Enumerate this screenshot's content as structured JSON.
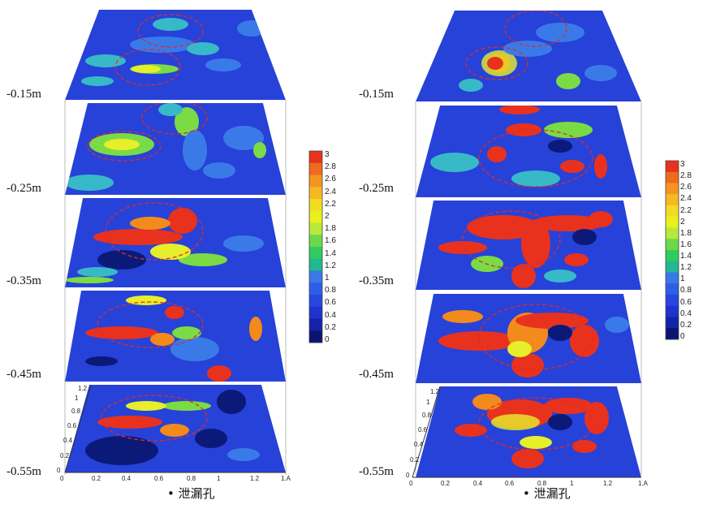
{
  "panels": [
    {
      "depth_labels": [
        "-0.15m",
        "-0.25m",
        "-0.35m",
        "-0.45m",
        "-0.55m"
      ],
      "x_ticks": [
        "0",
        "0.2",
        "0.4",
        "0.6",
        "0.8",
        "1",
        "1.2",
        "1.A"
      ],
      "y_ticks": [
        "0",
        "0.2",
        "0.4",
        "0.6",
        "0.8",
        "1",
        "1.2"
      ],
      "legend_text": "泄漏孔"
    },
    {
      "depth_labels": [
        "-0.15m",
        "-0.25m",
        "-0.35m",
        "-0.45m",
        "-0.55m"
      ],
      "x_ticks": [
        "0",
        "0.2",
        "0.4",
        "0.6",
        "0.8",
        "1",
        "1.2",
        "1.A"
      ],
      "y_ticks": [
        "0",
        "0.2",
        "0.4",
        "0.6",
        "0.8",
        "1",
        "1.2"
      ],
      "legend_text": "泄漏孔"
    }
  ],
  "colorbar": {
    "labels": [
      "3",
      "2.8",
      "2.6",
      "2.4",
      "2.2",
      "2",
      "1.8",
      "1.6",
      "1.4",
      "1.2",
      "1",
      "0.8",
      "0.6",
      "0.4",
      "0.2",
      "0"
    ],
    "colors": [
      "#e8321e",
      "#f06a1e",
      "#f59520",
      "#f7b826",
      "#f2dc20",
      "#e8f01e",
      "#b8e83a",
      "#6cd84a",
      "#2ecc5e",
      "#22b890",
      "#3a78e6",
      "#2e5ee8",
      "#2646e0",
      "#1e32d0",
      "#1422a8",
      "#0a1470"
    ]
  }
}
